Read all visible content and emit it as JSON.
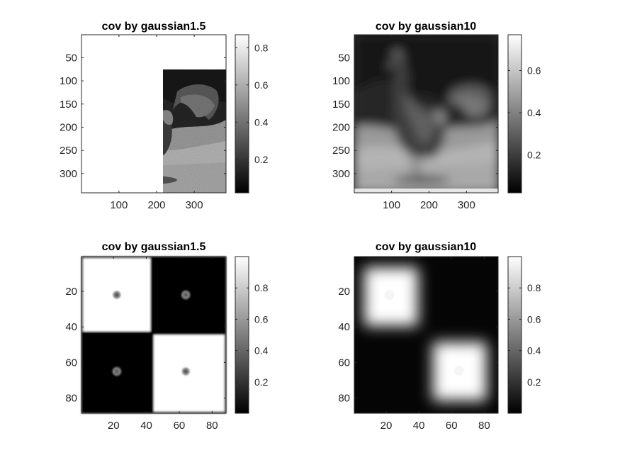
{
  "chart_data": [
    {
      "type": "heatmap",
      "title": "cov by gaussian1.5",
      "image": "rooster-grayscale-sharp",
      "xticks": [
        100,
        200,
        300
      ],
      "yticks": [
        50,
        100,
        150,
        200,
        250,
        300
      ],
      "xlim": [
        0.5,
        384.5
      ],
      "ylim": [
        0.5,
        341.5
      ],
      "colormap": "gray",
      "colorbar": {
        "ticks": [
          0.2,
          0.4,
          0.6,
          0.8
        ],
        "range": [
          0.02,
          0.87
        ]
      }
    },
    {
      "type": "heatmap",
      "title": "cov by gaussian10",
      "image": "rooster-grayscale-blurred",
      "xticks": [
        100,
        200,
        300
      ],
      "yticks": [
        50,
        100,
        150,
        200,
        250,
        300
      ],
      "xlim": [
        0.5,
        384.5
      ],
      "ylim": [
        0.5,
        341.5
      ],
      "colormap": "gray",
      "colorbar": {
        "ticks": [
          0.2,
          0.4,
          0.6
        ],
        "range": [
          0.02,
          0.77
        ]
      }
    },
    {
      "type": "heatmap",
      "title": "cov by gaussian1.5",
      "image": "checkerboard-sharp",
      "xticks": [
        20,
        40,
        60,
        80
      ],
      "yticks": [
        20,
        40,
        60,
        80
      ],
      "xlim": [
        0.5,
        88.5
      ],
      "ylim": [
        0.5,
        88.5
      ],
      "colormap": "gray",
      "colorbar": {
        "ticks": [
          0.2,
          0.4,
          0.6,
          0.8
        ],
        "range": [
          0.0,
          1.0
        ]
      },
      "dots": [
        {
          "x": 22,
          "y": 22
        },
        {
          "x": 64,
          "y": 22
        },
        {
          "x": 22,
          "y": 65
        },
        {
          "x": 64,
          "y": 65
        }
      ]
    },
    {
      "type": "heatmap",
      "title": "cov by gaussian10",
      "image": "checkerboard-blurred",
      "xticks": [
        20,
        40,
        60,
        80
      ],
      "yticks": [
        20,
        40,
        60,
        80
      ],
      "xlim": [
        0.5,
        88.5
      ],
      "ylim": [
        0.5,
        88.5
      ],
      "colormap": "gray",
      "colorbar": {
        "ticks": [
          0.2,
          0.4,
          0.6,
          0.8
        ],
        "range": [
          0.0,
          1.0
        ]
      }
    }
  ]
}
